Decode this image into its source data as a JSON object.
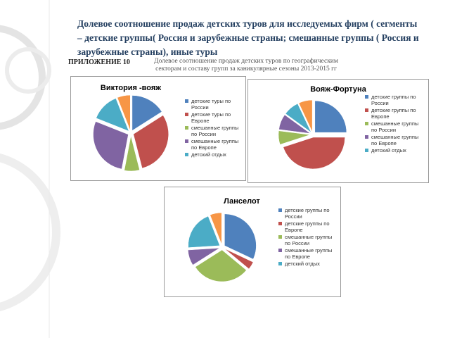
{
  "slide_title": "Долевое  соотношение  продаж детских туров  для исследуемых фирм ( сегменты – детские группы( Россия и зарубежные страны; смешанные группы ( Россия и зарубежные  страны), иные туры",
  "appendix_label": "ПРИЛОЖЕНИЕ 10",
  "appendix_caption": "Долевое соотношение продаж детских туров по географическим секторам и составу групп за каникулярные сезоны 2013-2015 гг",
  "chart_data": [
    {
      "type": "pie",
      "title": "Виктория -вояж",
      "categories": [
        "детские туры по России",
        "детские туры по Европе",
        "смешанные группы по России",
        "смешанные группы по Европе",
        "детский отдых",
        null
      ],
      "values": [
        16,
        30,
        7,
        28,
        13,
        6
      ],
      "colors": [
        "#4f81bd",
        "#c0504d",
        "#9bbb59",
        "#8064a2",
        "#4bacc6",
        "#f79646"
      ]
    },
    {
      "type": "pie",
      "title": "Вояж-Фортуна",
      "categories": [
        "детские группы по России",
        "детские группы по Европе",
        "смешанные группы по России",
        "смешанные группы по Европе",
        "детский отдых",
        null
      ],
      "values": [
        25,
        45,
        7,
        8,
        8,
        7
      ],
      "colors": [
        "#4f81bd",
        "#c0504d",
        "#9bbb59",
        "#8064a2",
        "#4bacc6",
        "#f79646"
      ]
    },
    {
      "type": "pie",
      "title": "Ланселот",
      "categories": [
        "детские группы по России",
        "детские группы по Европе",
        "смешанные группы по России",
        "смешанные группы по Европе",
        "детский отдых",
        null
      ],
      "values": [
        32,
        4,
        30,
        8,
        20,
        6
      ],
      "colors": [
        "#4f81bd",
        "#c0504d",
        "#9bbb59",
        "#8064a2",
        "#4bacc6",
        "#f79646"
      ]
    }
  ]
}
